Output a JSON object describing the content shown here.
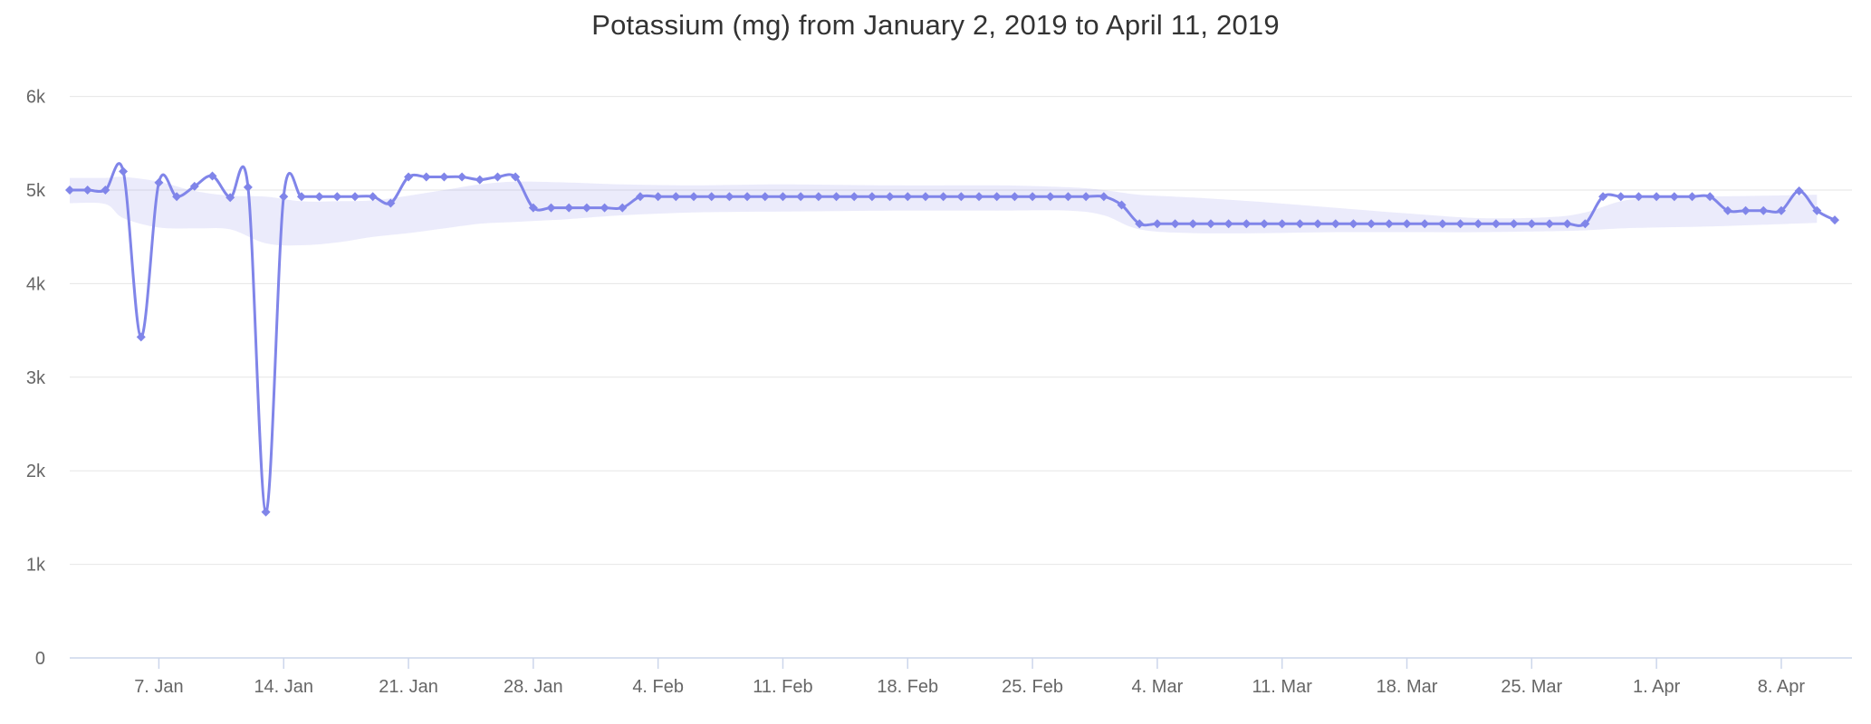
{
  "chart_data": {
    "type": "line",
    "title": "Potassium (mg) from January 2, 2019 to April 11, 2019",
    "xlabel": "",
    "ylabel": "",
    "x_start_date": "2019-01-02",
    "x_end_date": "2019-04-11",
    "x_interval": "daily",
    "num_points": 100,
    "values": [
      5000,
      5000,
      5000,
      5200,
      3430,
      5080,
      4930,
      5040,
      5150,
      4920,
      5030,
      1560,
      4930,
      4930,
      4930,
      4930,
      4930,
      4930,
      4860,
      5140,
      5140,
      5140,
      5140,
      5110,
      5140,
      5140,
      4810,
      4810,
      4810,
      4810,
      4810,
      4810,
      4930,
      4930,
      4930,
      4930,
      4930,
      4930,
      4930,
      4930,
      4930,
      4930,
      4930,
      4930,
      4930,
      4930,
      4930,
      4930,
      4930,
      4930,
      4930,
      4930,
      4930,
      4930,
      4930,
      4930,
      4930,
      4930,
      4930,
      4840,
      4640,
      4640,
      4640,
      4640,
      4640,
      4640,
      4640,
      4640,
      4640,
      4640,
      4640,
      4640,
      4640,
      4640,
      4640,
      4640,
      4640,
      4640,
      4640,
      4640,
      4640,
      4640,
      4640,
      4640,
      4640,
      4640,
      4930,
      4930,
      4930,
      4930,
      4930,
      4930,
      4930,
      4780,
      4780,
      4780,
      4780,
      4990,
      4780,
      4680
    ],
    "band_points": [
      [
        0,
        4860,
        5130
      ],
      [
        2,
        4850,
        5130
      ],
      [
        3,
        4700,
        5140
      ],
      [
        5,
        4600,
        5090
      ],
      [
        7,
        4590,
        4990
      ],
      [
        9,
        4580,
        4940
      ],
      [
        11,
        4430,
        4930
      ],
      [
        13,
        4410,
        4880
      ],
      [
        15,
        4440,
        4880
      ],
      [
        17,
        4500,
        4890
      ],
      [
        19,
        4540,
        4940
      ],
      [
        21,
        4590,
        5000
      ],
      [
        23,
        4640,
        5060
      ],
      [
        25,
        4660,
        5090
      ],
      [
        28,
        4690,
        5080
      ],
      [
        31,
        4730,
        5060
      ],
      [
        35,
        4760,
        5050
      ],
      [
        40,
        4770,
        5060
      ],
      [
        46,
        4780,
        5050
      ],
      [
        52,
        4780,
        5050
      ],
      [
        56,
        4780,
        5030
      ],
      [
        58,
        4730,
        5000
      ],
      [
        60,
        4580,
        4950
      ],
      [
        63,
        4540,
        4920
      ],
      [
        67,
        4540,
        4870
      ],
      [
        71,
        4550,
        4810
      ],
      [
        75,
        4550,
        4750
      ],
      [
        79,
        4550,
        4700
      ],
      [
        83,
        4560,
        4710
      ],
      [
        85,
        4570,
        4760
      ],
      [
        87,
        4590,
        4880
      ],
      [
        89,
        4600,
        4920
      ],
      [
        92,
        4610,
        4930
      ],
      [
        95,
        4630,
        4940
      ],
      [
        98,
        4650,
        4950
      ]
    ],
    "y_tick_labels": [
      "0",
      "1k",
      "2k",
      "3k",
      "4k",
      "5k",
      "6k"
    ],
    "y_tick_values": [
      0,
      1000,
      2000,
      3000,
      4000,
      5000,
      6000
    ],
    "ylim": [
      0,
      6200
    ],
    "x_tick_labels": [
      "7. Jan",
      "14. Jan",
      "21. Jan",
      "28. Jan",
      "4. Feb",
      "11. Feb",
      "18. Feb",
      "25. Feb",
      "4. Mar",
      "11. Mar",
      "18. Mar",
      "25. Mar",
      "1. Apr",
      "8. Apr"
    ],
    "x_tick_day_offsets": [
      5,
      12,
      19,
      26,
      33,
      40,
      47,
      54,
      61,
      68,
      75,
      82,
      89,
      96
    ],
    "grid": true,
    "legend": "none",
    "colors": {
      "line": "#8085e9",
      "marker": "#8085e9",
      "band_fill": "rgba(128,133,233,0.16)",
      "gridline": "#e6e6e6",
      "axis_line": "#ccd6eb",
      "tick_label": "#666666",
      "title": "#333333"
    }
  }
}
